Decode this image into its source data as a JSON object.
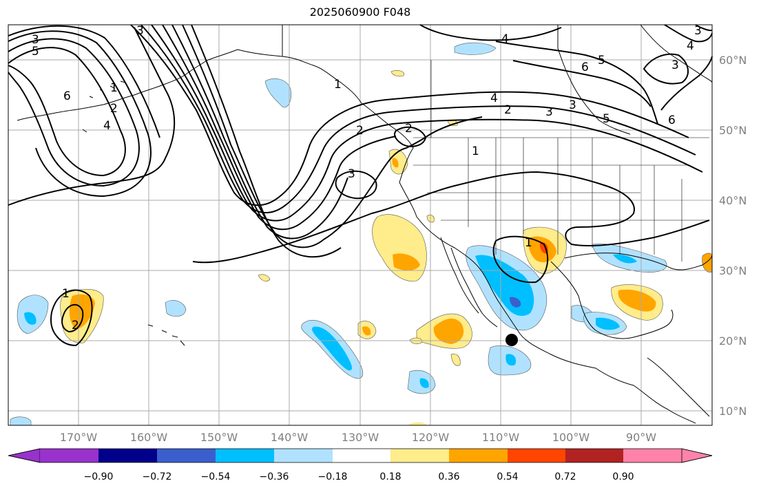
{
  "title": "2025060900 F048",
  "lat_labels": [
    "60°N",
    "50°N",
    "40°N",
    "30°N",
    "20°N",
    "10°N"
  ],
  "lon_labels": [
    "170°W",
    "160°W",
    "150°W",
    "140°W",
    "130°W",
    "120°W",
    "110°W",
    "100°W",
    "90°W"
  ],
  "colorbar": {
    "tick_labels": [
      "−0.90",
      "−0.72",
      "−0.54",
      "−0.36",
      "−0.18",
      "0.18",
      "0.36",
      "0.54",
      "0.72",
      "0.90"
    ],
    "colors": [
      "#9932cc",
      "#00008b",
      "#3a5fcd",
      "#00bfff",
      "#b0e2ff",
      "#ffffff",
      "#ffec8b",
      "#ffa500",
      "#ff4500",
      "#b22222",
      "#ff82ab"
    ]
  },
  "contour_labels": [
    "3",
    "5",
    "6",
    "3",
    "1",
    "2",
    "4",
    "3",
    "4",
    "5",
    "6",
    "4",
    "3",
    "5",
    "6",
    "3",
    "3",
    "2",
    "1",
    "2",
    "4",
    "3",
    "2",
    "1",
    "1",
    "2",
    "1"
  ],
  "colors": {
    "contour": "#000000",
    "grid": "#a9a9a9",
    "coast": "#000000"
  },
  "marker": "storm-center-dot"
}
